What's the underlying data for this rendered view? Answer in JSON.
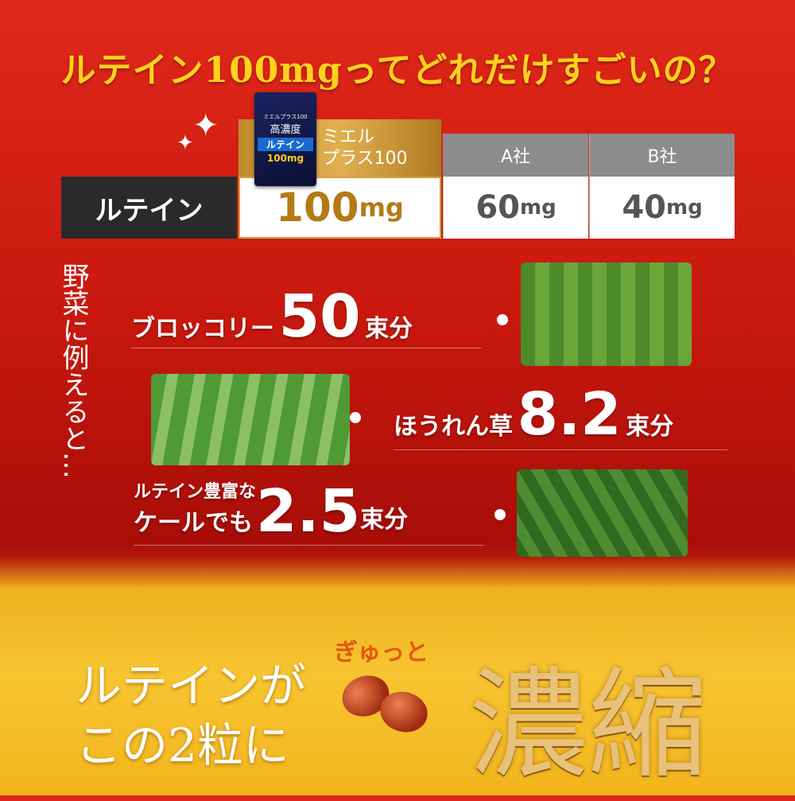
{
  "title": "ルテイン100mgってどれだけすごいの？",
  "table": {
    "row_label": "ルテイン",
    "columns": [
      {
        "name_line1": "ミエル",
        "name_line2": "プラス100",
        "value": "100",
        "unit": "mg",
        "highlight": "#c9962e"
      },
      {
        "name": "A社",
        "value": "60",
        "unit": "mg"
      },
      {
        "name": "B社",
        "value": "40",
        "unit": "mg"
      }
    ],
    "product_package": {
      "line1": "ミエルプラス100",
      "line2": "高濃度",
      "line3": "ルテイン",
      "line4": "100mg"
    }
  },
  "side_text": "野菜に例えると…",
  "vegetables": [
    {
      "label": "ブロッコリー",
      "number": "50",
      "suffix": "束分",
      "icon": "broccoli-image"
    },
    {
      "label": "ほうれん草",
      "number": "8.2",
      "suffix": "束分",
      "icon": "spinach-image"
    },
    {
      "label_line1": "ルテイン豊富な",
      "label_line2": "ケールでも",
      "number": "2.5",
      "suffix": "束分",
      "icon": "kale-image"
    }
  ],
  "bottom": {
    "line1": "ルテインが",
    "line2": "この2粒に",
    "accent": "ぎゅっと",
    "headline": "濃縮"
  },
  "colors": {
    "red": "#c8180e",
    "gold": "#f7c531",
    "title_yellow": "#ffd21c"
  }
}
